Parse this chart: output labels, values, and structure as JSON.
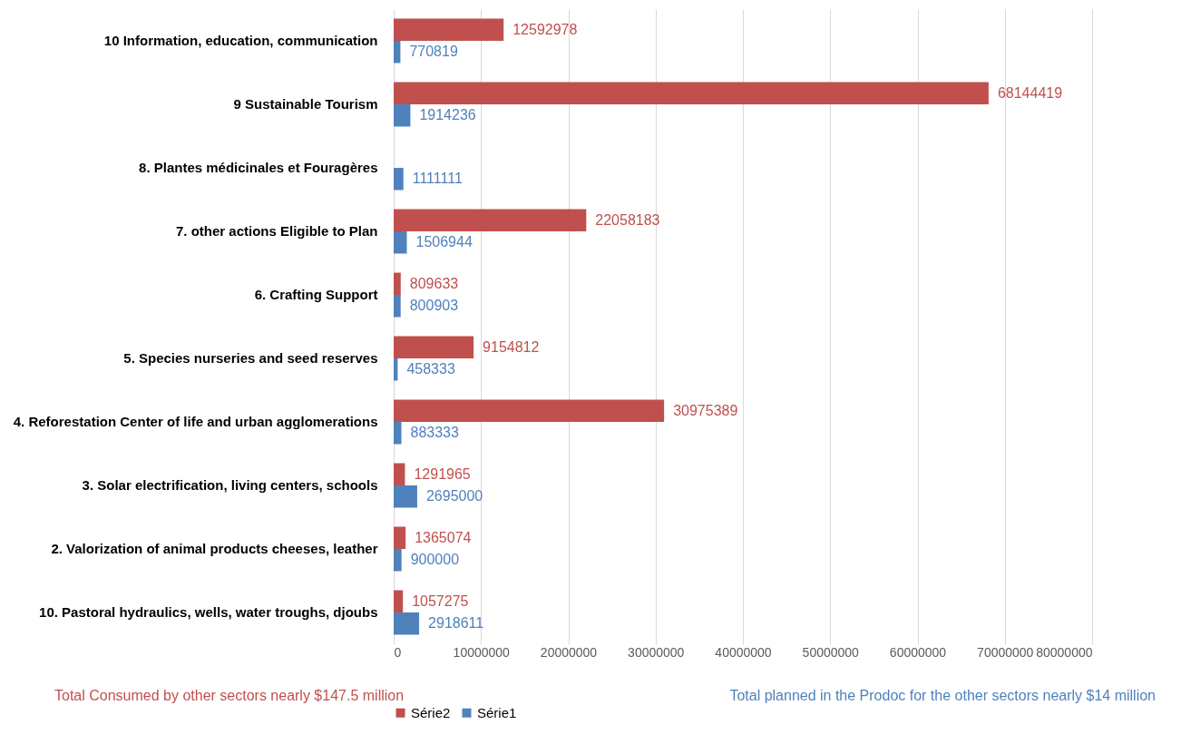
{
  "chart_data": {
    "type": "bar",
    "orientation": "horizontal",
    "categories": [
      "10 Information, education, communication",
      "9 Sustainable Tourism",
      "8. Plantes médicinales et Fouragères",
      "7. other actions Eligible to Plan",
      "6. Crafting Support",
      "5.  Species nurseries and seed reserves",
      "4.  Reforestation Center of life and urban agglomerations",
      "3. Solar electrification, living centers, schools",
      "2.  Valorization of animal products cheeses, leather",
      "10. Pastoral hydraulics, wells, water troughs, djoubs"
    ],
    "series": [
      {
        "name": "Série2",
        "color": "#c0504d",
        "values": [
          12592978,
          68144419,
          null,
          22058183,
          809633,
          9154812,
          30975389,
          1291965,
          1365074,
          1057275
        ]
      },
      {
        "name": "Série1",
        "color": "#4f81bd",
        "values": [
          770819,
          1914236,
          1111111,
          1506944,
          800903,
          458333,
          883333,
          2695000,
          900000,
          2918611
        ]
      }
    ],
    "xlim": [
      0,
      80000000
    ],
    "xticks": [
      0,
      10000000,
      20000000,
      30000000,
      40000000,
      50000000,
      60000000,
      70000000,
      80000000
    ],
    "grid": "x",
    "legend": "bottom",
    "data_labels": true,
    "annotations": [
      "Total Consumed by other sectors nearly $147.5 million",
      "Total planned in the Prodoc for the other sectors nearly $14 million"
    ]
  }
}
